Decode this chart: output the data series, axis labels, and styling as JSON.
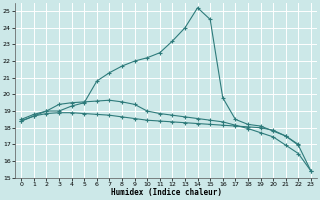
{
  "xlabel": "Humidex (Indice chaleur)",
  "bg_color": "#cce8e8",
  "grid_color": "#ffffff",
  "line_color": "#2e7b7b",
  "xlim": [
    -0.5,
    23.5
  ],
  "ylim": [
    15,
    25.5
  ],
  "xticks": [
    0,
    1,
    2,
    3,
    4,
    5,
    6,
    7,
    8,
    9,
    10,
    11,
    12,
    13,
    14,
    15,
    16,
    17,
    18,
    19,
    20,
    21,
    22,
    23
  ],
  "yticks": [
    15,
    16,
    17,
    18,
    19,
    20,
    21,
    22,
    23,
    24,
    25
  ],
  "series1_x": [
    0,
    1,
    2,
    3,
    4,
    5,
    6,
    7,
    8,
    9,
    10,
    11,
    12,
    13,
    14,
    15,
    16,
    17,
    18,
    19,
    20,
    21,
    22
  ],
  "series1_y": [
    18.5,
    18.8,
    19.0,
    19.0,
    19.3,
    19.5,
    20.8,
    21.3,
    21.7,
    22.0,
    22.2,
    22.5,
    23.2,
    24.0,
    25.2,
    24.5,
    19.8,
    18.5,
    18.2,
    18.1,
    17.8,
    17.5,
    17.0
  ],
  "series2_x": [
    0,
    1,
    2,
    3,
    4,
    5,
    6,
    7,
    8,
    9,
    10,
    11,
    12,
    13,
    14,
    15,
    16,
    17,
    18,
    19,
    20,
    21,
    22,
    23
  ],
  "series2_y": [
    18.4,
    18.7,
    18.85,
    18.9,
    18.9,
    18.85,
    18.8,
    18.75,
    18.65,
    18.55,
    18.45,
    18.4,
    18.35,
    18.3,
    18.25,
    18.2,
    18.15,
    18.1,
    18.05,
    18.0,
    17.85,
    17.5,
    16.95,
    15.4
  ],
  "series3_x": [
    0,
    1,
    2,
    3,
    4,
    5,
    6,
    7,
    8,
    9,
    10,
    11,
    12,
    13,
    14,
    15,
    16,
    17,
    18,
    19,
    20,
    21,
    22,
    23
  ],
  "series3_y": [
    18.4,
    18.7,
    19.0,
    19.4,
    19.5,
    19.55,
    19.6,
    19.65,
    19.55,
    19.4,
    19.0,
    18.85,
    18.75,
    18.65,
    18.55,
    18.45,
    18.35,
    18.15,
    17.95,
    17.7,
    17.45,
    16.95,
    16.45,
    15.4
  ]
}
